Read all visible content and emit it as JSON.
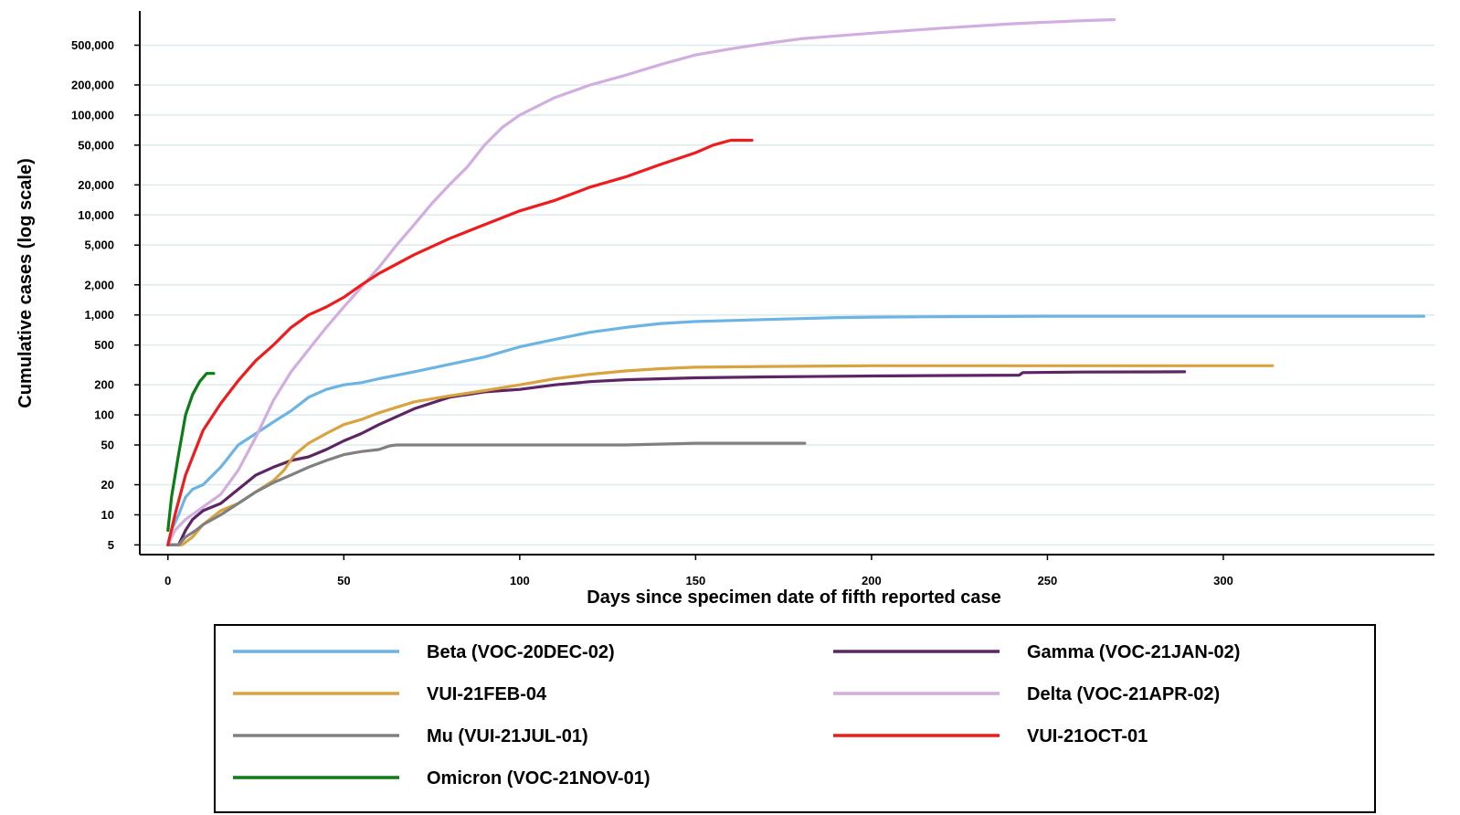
{
  "chart_data": {
    "type": "line",
    "xlabel": "Days since specimen date of fifth reported case",
    "ylabel": "Cumulative cases (log scale)",
    "y_scale": "log",
    "xlim": [
      -8,
      360
    ],
    "ylim": [
      4,
      1100000
    ],
    "x_ticks": [
      0,
      50,
      100,
      150,
      200,
      250,
      300
    ],
    "x_tick_labels": [
      "0",
      "50",
      "100",
      "150",
      "200",
      "250",
      "300"
    ],
    "y_ticks": [
      5,
      10,
      20,
      50,
      100,
      200,
      500,
      1000,
      2000,
      5000,
      10000,
      20000,
      50000,
      100000,
      200000,
      500000
    ],
    "y_tick_labels": [
      "5",
      "10",
      "20",
      "50",
      "100",
      "200",
      "500",
      "1,000",
      "2,000",
      "5,000",
      "10,000",
      "20,000",
      "50,000",
      "100,000",
      "200,000",
      "500,000"
    ],
    "grid": true,
    "legend_position": "bottom",
    "series": [
      {
        "name": "Beta (VOC-20DEC-02)",
        "color": "#6cb4e4",
        "x": [
          0,
          1,
          3,
          5,
          7,
          10,
          15,
          20,
          25,
          30,
          35,
          40,
          45,
          50,
          55,
          60,
          70,
          80,
          90,
          100,
          110,
          120,
          130,
          140,
          150,
          160,
          170,
          180,
          190,
          200,
          220,
          250,
          300,
          350,
          357
        ],
        "y": [
          5,
          7,
          10,
          15,
          18,
          20,
          30,
          50,
          65,
          85,
          110,
          150,
          180,
          200,
          210,
          230,
          270,
          320,
          380,
          480,
          570,
          670,
          750,
          820,
          860,
          880,
          900,
          920,
          940,
          950,
          960,
          970,
          970,
          970,
          970
        ]
      },
      {
        "name": "Gamma (VOC-21JAN-02)",
        "color": "#5e2565",
        "x": [
          0,
          3,
          5,
          7,
          10,
          15,
          20,
          25,
          30,
          35,
          40,
          45,
          50,
          55,
          60,
          70,
          80,
          90,
          100,
          110,
          120,
          130,
          150,
          170,
          200,
          242,
          243,
          260,
          289
        ],
        "y": [
          5,
          5,
          7,
          9,
          11,
          13,
          18,
          25,
          30,
          35,
          38,
          45,
          55,
          65,
          80,
          115,
          150,
          170,
          180,
          200,
          215,
          225,
          235,
          240,
          245,
          250,
          265,
          268,
          270
        ]
      },
      {
        "name": "VUI-21FEB-04",
        "color": "#d9a440",
        "x": [
          0,
          4,
          7,
          10,
          15,
          20,
          25,
          30,
          33,
          36,
          40,
          45,
          50,
          55,
          60,
          70,
          80,
          90,
          100,
          110,
          120,
          130,
          140,
          150,
          170,
          200,
          250,
          314
        ],
        "y": [
          5,
          5,
          6,
          8,
          11,
          13,
          17,
          22,
          28,
          40,
          52,
          65,
          80,
          90,
          105,
          135,
          155,
          175,
          200,
          230,
          255,
          275,
          290,
          300,
          305,
          310,
          310,
          310
        ]
      },
      {
        "name": "Delta (VOC-21APR-02)",
        "color": "#d2aee0",
        "x": [
          0,
          2,
          5,
          10,
          15,
          20,
          25,
          30,
          35,
          40,
          45,
          50,
          55,
          60,
          65,
          70,
          75,
          80,
          85,
          90,
          95,
          100,
          110,
          120,
          130,
          140,
          150,
          160,
          170,
          180,
          200,
          220,
          240,
          260,
          269
        ],
        "y": [
          5,
          7,
          9,
          12,
          16,
          28,
          60,
          140,
          270,
          450,
          750,
          1200,
          1900,
          3000,
          5000,
          8000,
          13000,
          20000,
          30000,
          50000,
          75000,
          100000,
          150000,
          200000,
          250000,
          320000,
          400000,
          460000,
          520000,
          580000,
          660000,
          740000,
          820000,
          880000,
          900000
        ]
      },
      {
        "name": "Mu (VUI-21JUL-01)",
        "color": "#808080",
        "x": [
          0,
          3,
          5,
          8,
          10,
          15,
          20,
          25,
          30,
          35,
          40,
          45,
          50,
          55,
          60,
          63,
          65,
          80,
          100,
          130,
          150,
          181
        ],
        "y": [
          5,
          5,
          6,
          7,
          8,
          10,
          13,
          17,
          21,
          25,
          30,
          35,
          40,
          43,
          45,
          49,
          50,
          50,
          50,
          50,
          52,
          52
        ]
      },
      {
        "name": "VUI-21OCT-01",
        "color": "#ee1c1c",
        "x": [
          0,
          2,
          5,
          10,
          15,
          20,
          25,
          30,
          35,
          40,
          45,
          50,
          55,
          60,
          70,
          80,
          90,
          100,
          110,
          120,
          130,
          140,
          150,
          155,
          160,
          166
        ],
        "y": [
          5,
          10,
          25,
          70,
          130,
          220,
          350,
          500,
          750,
          1000,
          1200,
          1500,
          2000,
          2600,
          4000,
          5800,
          8000,
          11000,
          14000,
          19000,
          24000,
          32000,
          42000,
          50000,
          56000,
          56000
        ]
      },
      {
        "name": "Omicron (VOC-21NOV-01)",
        "color": "#0a7d15",
        "x": [
          0,
          1,
          3,
          5,
          7,
          9,
          11,
          13
        ],
        "y": [
          7,
          15,
          40,
          100,
          160,
          215,
          260,
          260
        ]
      }
    ],
    "legend_columns": [
      [
        "Beta (VOC-20DEC-02)",
        "VUI-21FEB-04",
        "Mu (VUI-21JUL-01)",
        "Omicron (VOC-21NOV-01)"
      ],
      [
        "Gamma (VOC-21JAN-02)",
        "Delta (VOC-21APR-02)",
        "VUI-21OCT-01"
      ]
    ]
  }
}
